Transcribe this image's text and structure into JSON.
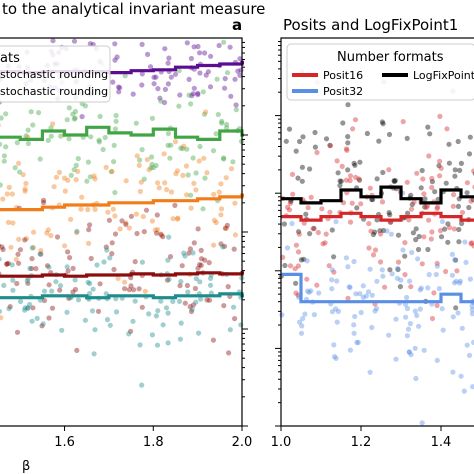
{
  "chart_data": [
    {
      "type": "scatter",
      "title": "to the analytical invariant measure",
      "panel_label": "a",
      "xlabel": "β",
      "xlim": [
        1.45,
        2.0
      ],
      "x_ticks": [
        1.6,
        1.8,
        2.0
      ],
      "x_tick_labels": [
        "1.6",
        "1.8",
        "2.0"
      ],
      "yscale": "log",
      "ylim": [
        0.001,
        10
      ],
      "grid": false,
      "legend": {
        "placement": "top-left",
        "title": "ats",
        "entries": [
          "stochastic rounding",
          "stochastic rounding"
        ]
      },
      "series": [
        {
          "color": "#5b0d91",
          "x": [
            1.45,
            1.5,
            1.55,
            1.6,
            1.65,
            1.7,
            1.75,
            1.8,
            1.85,
            1.9,
            1.95,
            2.0
          ],
          "values": [
            4.5,
            4.4,
            4.5,
            4.5,
            4.5,
            4.4,
            4.6,
            4.7,
            5.0,
            5.2,
            5.4,
            5.6
          ]
        },
        {
          "color": "#41a545",
          "x": [
            1.45,
            1.5,
            1.55,
            1.6,
            1.65,
            1.7,
            1.75,
            1.8,
            1.85,
            1.9,
            1.95,
            2.0
          ],
          "values": [
            0.95,
            0.9,
            1.1,
            1.0,
            1.2,
            1.05,
            1.0,
            1.15,
            0.95,
            0.9,
            1.1,
            1.0
          ]
        },
        {
          "color": "#f07d19",
          "x": [
            1.45,
            1.5,
            1.55,
            1.6,
            1.65,
            1.7,
            1.75,
            1.8,
            1.85,
            1.9,
            1.95,
            2.0
          ],
          "values": [
            0.17,
            0.17,
            0.18,
            0.19,
            0.19,
            0.2,
            0.2,
            0.21,
            0.21,
            0.22,
            0.23,
            0.24
          ]
        },
        {
          "color": "#8b0d0d",
          "x": [
            1.45,
            1.5,
            1.55,
            1.6,
            1.65,
            1.7,
            1.75,
            1.8,
            1.85,
            1.9,
            1.95,
            2.0
          ],
          "values": [
            0.035,
            0.035,
            0.036,
            0.035,
            0.036,
            0.036,
            0.037,
            0.036,
            0.037,
            0.038,
            0.037,
            0.038
          ]
        },
        {
          "color": "#1f8c8c",
          "x": [
            1.45,
            1.5,
            1.55,
            1.6,
            1.65,
            1.7,
            1.75,
            1.8,
            1.85,
            1.9,
            1.95,
            2.0
          ],
          "values": [
            0.021,
            0.021,
            0.022,
            0.022,
            0.021,
            0.022,
            0.022,
            0.021,
            0.022,
            0.022,
            0.023,
            0.022
          ]
        }
      ]
    },
    {
      "type": "scatter",
      "title": "Posits and LogFixPoint1",
      "xlim": [
        1.0,
        1.5
      ],
      "x_ticks": [
        1.0,
        1.2,
        1.4
      ],
      "x_tick_labels": [
        "1.0",
        "1.2",
        "1.4"
      ],
      "yscale": "log",
      "ylim": [
        0.0001,
        10
      ],
      "grid": false,
      "legend": {
        "placement": "top",
        "title": "Number formats",
        "entries": [
          {
            "name": "Posit16",
            "color": "#d62728"
          },
          {
            "name": "LogFixPoint",
            "color": "#000000"
          },
          {
            "name": "Posit32",
            "color": "#5b8ee6"
          }
        ]
      },
      "series": [
        {
          "name": "LogFixPoint",
          "color": "#000000",
          "x": [
            1.0,
            1.05,
            1.1,
            1.15,
            1.2,
            1.25,
            1.3,
            1.35,
            1.4,
            1.45,
            1.5
          ],
          "values": [
            0.085,
            0.075,
            0.08,
            0.11,
            0.09,
            0.12,
            0.085,
            0.075,
            0.11,
            0.09,
            0.085
          ]
        },
        {
          "name": "Posit16",
          "color": "#d62728",
          "x": [
            1.0,
            1.05,
            1.1,
            1.15,
            1.2,
            1.25,
            1.3,
            1.35,
            1.4,
            1.45,
            1.5
          ],
          "values": [
            0.05,
            0.045,
            0.05,
            0.055,
            0.05,
            0.045,
            0.05,
            0.055,
            0.05,
            0.045,
            0.05
          ]
        },
        {
          "name": "Posit32",
          "color": "#5b8ee6",
          "x": [
            1.0,
            1.05,
            1.1,
            1.15,
            1.2,
            1.25,
            1.3,
            1.35,
            1.4,
            1.45,
            1.5
          ],
          "values": [
            0.009,
            0.004,
            0.004,
            0.004,
            0.004,
            0.004,
            0.004,
            0.004,
            0.005,
            0.004,
            0.004
          ]
        }
      ]
    }
  ]
}
